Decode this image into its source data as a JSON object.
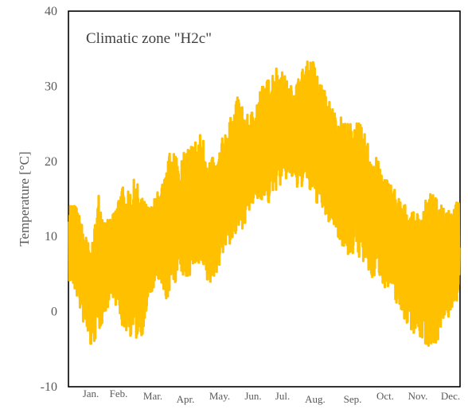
{
  "chart_data": {
    "type": "line",
    "title": "Climatic zone \"H2c\"",
    "ylabel": "Temperature [°C]",
    "xlabel": "",
    "ylim": [
      -10,
      40
    ],
    "yticks": [
      -10,
      0,
      10,
      20,
      30,
      40
    ],
    "grid": false,
    "legend": "none",
    "months": [
      "Jan.",
      "Feb.",
      "Mar.",
      "Apr.",
      "May.",
      "Jun.",
      "Jul.",
      "Aug.",
      "Sep.",
      "Oct.",
      "Nov.",
      "Dec."
    ],
    "series": [
      {
        "color": "#FFC000",
        "daily_min_approx": [
          4,
          2,
          -2,
          -5,
          -3,
          0,
          2,
          -2,
          -3,
          -4,
          -3,
          2,
          4,
          1,
          3,
          5,
          4,
          6,
          5,
          3,
          5,
          8,
          9,
          10,
          12,
          14,
          15,
          14,
          16,
          17,
          18,
          16,
          17,
          15,
          14,
          12,
          11,
          9,
          7,
          8,
          6,
          4,
          5,
          3,
          2,
          0,
          -2,
          -3,
          -4,
          -5,
          -4,
          -2,
          0,
          2
        ],
        "daily_max_approx": [
          15,
          14,
          11,
          8,
          16,
          12,
          13,
          17,
          16,
          18,
          15,
          14,
          16,
          18,
          23,
          20,
          22,
          23,
          24,
          21,
          20,
          24,
          26,
          29,
          26,
          27,
          30,
          31,
          33,
          32,
          30,
          31,
          33,
          34,
          31,
          29,
          27,
          26,
          25,
          26,
          24,
          22,
          20,
          18,
          17,
          15,
          14,
          13,
          14,
          16,
          15,
          15,
          14,
          15
        ]
      }
    ]
  }
}
